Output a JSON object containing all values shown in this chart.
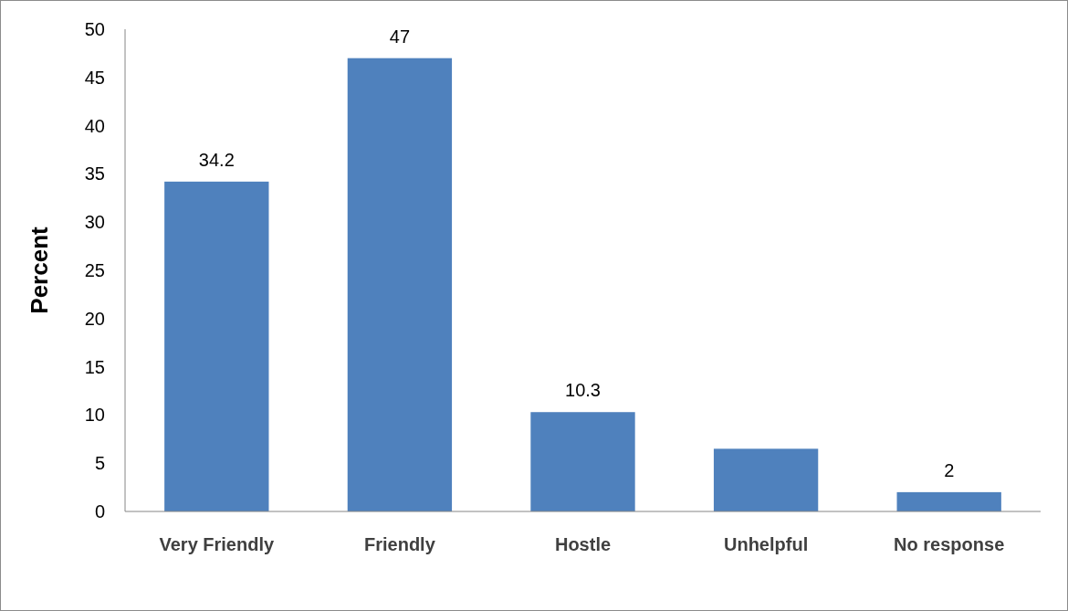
{
  "chart_data": {
    "type": "bar",
    "ylabel": "Percent",
    "categories": [
      "Very Friendly",
      "Friendly",
      "Hostle",
      "Unhelpful",
      "No response"
    ],
    "values": [
      34.2,
      47,
      10.3,
      6.5,
      2
    ],
    "value_labels": [
      "34.2",
      "47",
      "10.3",
      null,
      "2"
    ],
    "color": "#4f81bd",
    "ylim": [
      0,
      50
    ],
    "yticks": [
      0,
      5,
      10,
      15,
      20,
      25,
      30,
      35,
      40,
      45,
      50
    ]
  }
}
